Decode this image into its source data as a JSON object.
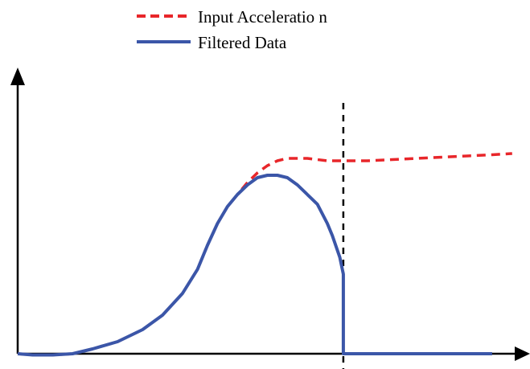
{
  "chart_data": {
    "type": "line",
    "title": "",
    "xlabel": "",
    "ylabel": "",
    "xlim": [
      0,
      100
    ],
    "ylim": [
      0,
      100
    ],
    "grid": false,
    "legend": "top-center",
    "marker_x": 65.2,
    "series": [
      {
        "name": "Input Acceleratio n",
        "color": "#e8262a",
        "style": "dashed",
        "points": [
          [
            0,
            0
          ],
          [
            3,
            -0.5
          ],
          [
            7,
            -0.5
          ],
          [
            11,
            0
          ],
          [
            15,
            2
          ],
          [
            20,
            5
          ],
          [
            25,
            10
          ],
          [
            29,
            16
          ],
          [
            33,
            25
          ],
          [
            36,
            35
          ],
          [
            38,
            45
          ],
          [
            40,
            54
          ],
          [
            42,
            61
          ],
          [
            44,
            66
          ],
          [
            46,
            71
          ],
          [
            48,
            75
          ],
          [
            50,
            78
          ],
          [
            52,
            80
          ],
          [
            54,
            81
          ],
          [
            56,
            81
          ],
          [
            58,
            81
          ],
          [
            60,
            80.5
          ],
          [
            62,
            80
          ],
          [
            65,
            80
          ],
          [
            70,
            80
          ],
          [
            75,
            80.5
          ],
          [
            80,
            81
          ],
          [
            85,
            81.5
          ],
          [
            90,
            82
          ],
          [
            95,
            82.5
          ],
          [
            99,
            83
          ]
        ]
      },
      {
        "name": "Filtered Data",
        "color": "#3b56a8",
        "style": "solid",
        "points": [
          [
            0,
            0
          ],
          [
            3,
            -0.5
          ],
          [
            7,
            -0.5
          ],
          [
            11,
            0
          ],
          [
            15,
            2
          ],
          [
            20,
            5
          ],
          [
            25,
            10
          ],
          [
            29,
            16
          ],
          [
            33,
            25
          ],
          [
            36,
            35
          ],
          [
            38,
            45
          ],
          [
            40,
            54
          ],
          [
            42,
            61
          ],
          [
            44,
            66
          ],
          [
            46,
            70
          ],
          [
            48,
            73
          ],
          [
            50,
            74
          ],
          [
            52,
            74
          ],
          [
            54,
            73
          ],
          [
            56,
            70
          ],
          [
            58,
            66
          ],
          [
            60,
            62
          ],
          [
            62,
            54
          ],
          [
            63,
            49
          ],
          [
            64.5,
            40
          ],
          [
            65.2,
            33
          ],
          [
            65.2,
            0
          ],
          [
            95,
            0
          ]
        ]
      }
    ]
  }
}
